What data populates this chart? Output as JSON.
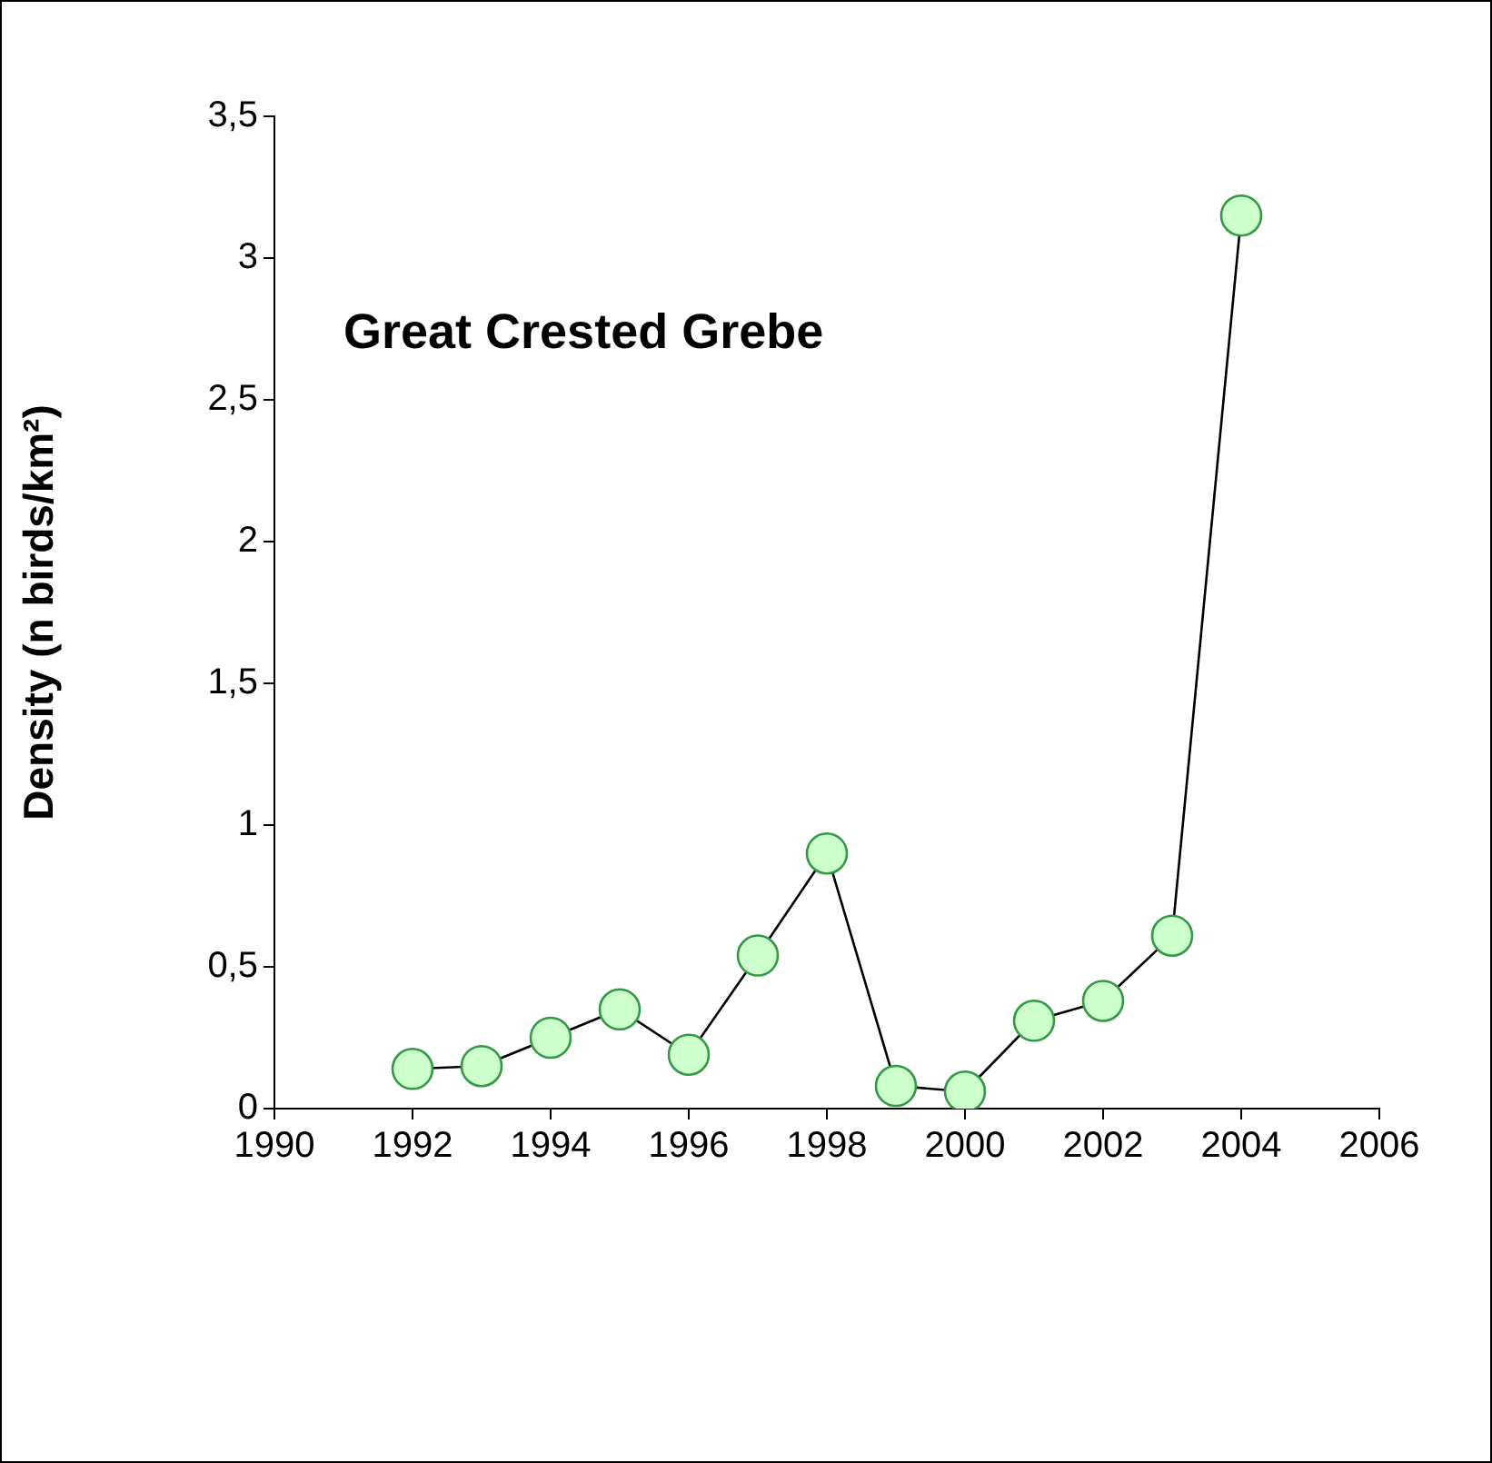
{
  "chart_data": {
    "type": "line",
    "title": "Great Crested Grebe",
    "ylabel": "Density (n birds/km²)",
    "x": [
      1992,
      1993,
      1994,
      1995,
      1996,
      1997,
      1998,
      1999,
      2000,
      2001,
      2002,
      2003,
      2004
    ],
    "series": [
      {
        "color": "#000000",
        "values": [
          0.14,
          0.15,
          0.25,
          0.35,
          0.19,
          0.54,
          0.9,
          0.08,
          0.06,
          0.31,
          0.38,
          0.61,
          3.15
        ]
      }
    ],
    "marker": "circle",
    "line_style": "solid",
    "legend": false,
    "xlim": [
      1990,
      2006
    ],
    "xticks": [
      1990,
      1992,
      1994,
      1996,
      1998,
      2000,
      2002,
      2004,
      2006
    ],
    "ylim": [
      0,
      3.5
    ],
    "yticks": [
      0,
      {
        "value": 0.5,
        "label": "0,5"
      },
      1,
      {
        "value": 1.5,
        "label": "1,5"
      },
      2,
      {
        "value": 2.5,
        "label": "2,5"
      },
      3,
      {
        "value": 3.5,
        "label": "3,5"
      }
    ]
  }
}
